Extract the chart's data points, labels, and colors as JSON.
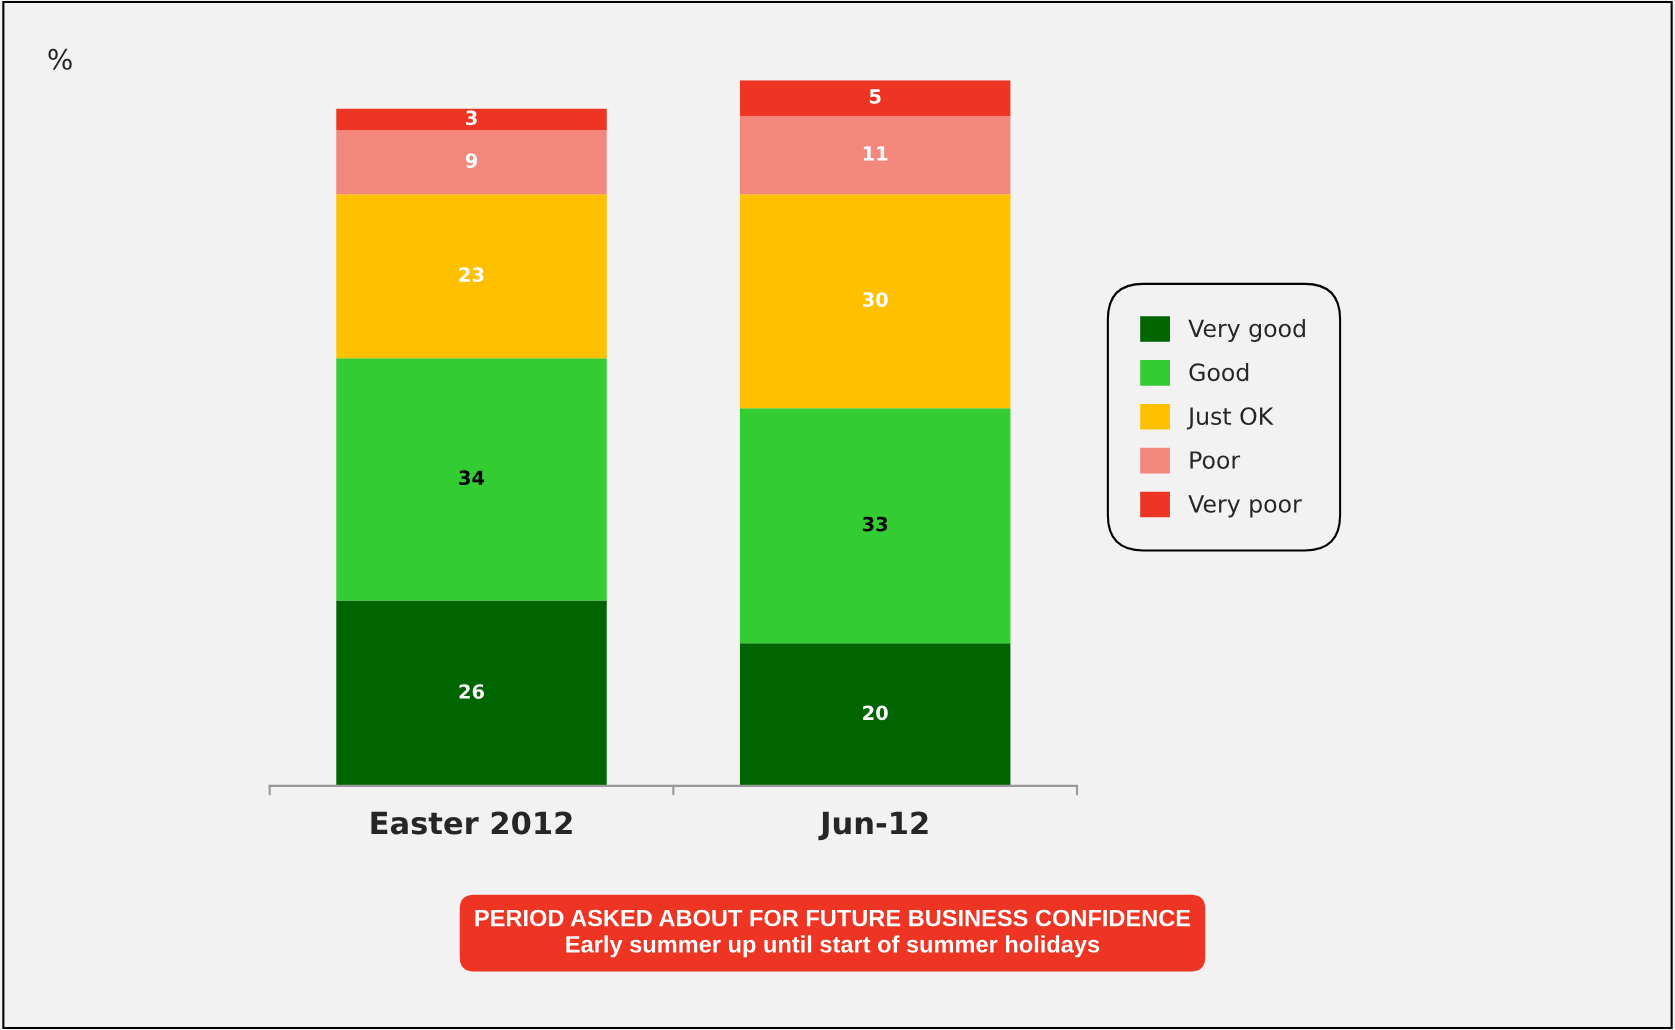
{
  "chart_data": {
    "type": "bar",
    "stacked": true,
    "data_labels": true,
    "tick_labels": "x",
    "grid": false,
    "legend": "right",
    "categories": [
      "Easter 2012",
      "Jun-12"
    ],
    "series": [
      {
        "name": "Very good",
        "color": "#006400",
        "values": [
          26,
          20
        ]
      },
      {
        "name": "Good",
        "color": "#33cc33",
        "values": [
          34,
          33
        ]
      },
      {
        "name": "Just OK",
        "color": "#ffc000",
        "values": [
          23,
          30
        ]
      },
      {
        "name": "Poor",
        "color": "#f4877b",
        "values": [
          9,
          11
        ]
      },
      {
        "name": "Very poor",
        "color": "#ee3524",
        "values": [
          3,
          5
        ]
      }
    ],
    "annotations": [
      "%",
      "PERIOD ASKED ABOUT FOR FUTURE BUSINESS CONFIDENCE",
      "Early summer up until start of summer holidays"
    ]
  }
}
